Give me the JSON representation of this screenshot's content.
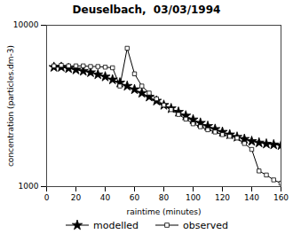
{
  "chart_data": {
    "type": "line",
    "title": "Deuselbach,  03/03/1994",
    "xlabel": "raintime (minutes)",
    "ylabel": "concentration (particles.dm-3)",
    "x": [
      5,
      10,
      15,
      20,
      25,
      30,
      35,
      40,
      45,
      50,
      55,
      60,
      65,
      70,
      75,
      80,
      85,
      90,
      95,
      100,
      105,
      110,
      115,
      120,
      125,
      130,
      135,
      140,
      145,
      150,
      155,
      160
    ],
    "series": [
      {
        "name": "modelled",
        "color": "#000000",
        "marker": "star",
        "values": [
          5500,
          5500,
          5400,
          5300,
          5200,
          5100,
          4950,
          4800,
          4600,
          4400,
          4200,
          4000,
          3800,
          3600,
          3400,
          3200,
          3050,
          2900,
          2750,
          2600,
          2480,
          2370,
          2270,
          2180,
          2100,
          2030,
          1970,
          1910,
          1870,
          1840,
          1820,
          1800
        ]
      },
      {
        "name": "observed",
        "color": "#000000",
        "marker": "square",
        "values": [
          5600,
          5650,
          5600,
          5600,
          5600,
          5550,
          5550,
          5500,
          5450,
          4200,
          7200,
          5000,
          4200,
          3800,
          3500,
          3200,
          3000,
          2800,
          2620,
          2450,
          2350,
          2250,
          2180,
          2100,
          2050,
          2000,
          1850,
          1700,
          1250,
          1180,
          1100,
          1050
        ]
      }
    ],
    "xlim": [
      0,
      160
    ],
    "xticks": [
      0,
      20,
      40,
      60,
      80,
      100,
      120,
      140,
      160
    ],
    "ylim": [
      1000,
      10000
    ],
    "yticks": [
      1000,
      10000
    ],
    "log": "y",
    "legend": "bottom"
  }
}
